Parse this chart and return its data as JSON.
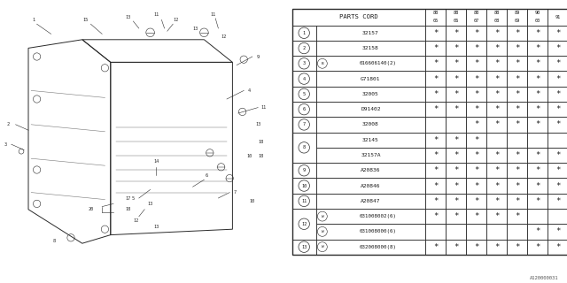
{
  "footnote": "A120000031",
  "bg_color": "#ffffff",
  "col_header": "PARTS CORD",
  "year_cols": [
    [
      "88",
      "05"
    ],
    [
      "88",
      "06"
    ],
    [
      "88",
      "07"
    ],
    [
      "88",
      "08"
    ],
    [
      "89",
      "09"
    ],
    [
      "90",
      "00"
    ],
    [
      "91",
      ""
    ]
  ],
  "rows": [
    {
      "num": "1",
      "code": "32157",
      "prefix": "",
      "stars": [
        1,
        1,
        1,
        1,
        1,
        1,
        1
      ]
    },
    {
      "num": "2",
      "code": "32158",
      "prefix": "",
      "stars": [
        1,
        1,
        1,
        1,
        1,
        1,
        1
      ]
    },
    {
      "num": "3",
      "code": "016606140(2)",
      "prefix": "B",
      "stars": [
        1,
        1,
        1,
        1,
        1,
        1,
        1
      ]
    },
    {
      "num": "4",
      "code": "G71801",
      "prefix": "",
      "stars": [
        1,
        1,
        1,
        1,
        1,
        1,
        1
      ]
    },
    {
      "num": "5",
      "code": "32005",
      "prefix": "",
      "stars": [
        1,
        1,
        1,
        1,
        1,
        1,
        1
      ]
    },
    {
      "num": "6",
      "code": "D91402",
      "prefix": "",
      "stars": [
        1,
        1,
        1,
        1,
        1,
        1,
        1
      ]
    },
    {
      "num": "7",
      "code": "32008",
      "prefix": "",
      "stars": [
        0,
        0,
        1,
        1,
        1,
        1,
        1
      ]
    },
    {
      "num": "8",
      "code": "32145",
      "prefix": "",
      "stars": [
        1,
        1,
        1,
        0,
        0,
        0,
        0
      ]
    },
    {
      "num": "8",
      "code": "32157A",
      "prefix": "",
      "stars": [
        1,
        1,
        1,
        1,
        1,
        1,
        1
      ]
    },
    {
      "num": "9",
      "code": "A20836",
      "prefix": "",
      "stars": [
        1,
        1,
        1,
        1,
        1,
        1,
        1
      ]
    },
    {
      "num": "10",
      "code": "A20846",
      "prefix": "",
      "stars": [
        1,
        1,
        1,
        1,
        1,
        1,
        1
      ]
    },
    {
      "num": "11",
      "code": "A20847",
      "prefix": "",
      "stars": [
        1,
        1,
        1,
        1,
        1,
        1,
        1
      ]
    },
    {
      "num": "12",
      "code": "031008002(6)",
      "prefix": "W",
      "stars": [
        1,
        1,
        1,
        1,
        1,
        0,
        0
      ]
    },
    {
      "num": "12",
      "code": "031008000(6)",
      "prefix": "W",
      "stars": [
        0,
        0,
        0,
        0,
        0,
        1,
        1
      ]
    },
    {
      "num": "13",
      "code": "032008000(8)",
      "prefix": "W",
      "stars": [
        1,
        1,
        1,
        1,
        1,
        1,
        1
      ]
    }
  ],
  "groups": {
    "8": [
      7,
      8
    ],
    "12": [
      12,
      13
    ]
  }
}
